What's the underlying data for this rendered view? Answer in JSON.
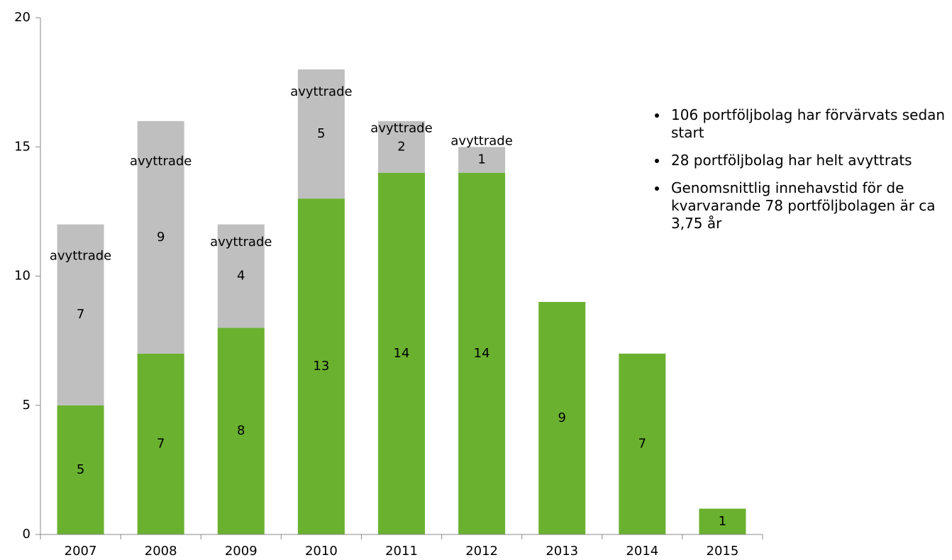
{
  "chart_data": {
    "type": "stacked_bar",
    "categories": [
      "2007",
      "2008",
      "2009",
      "2010",
      "2011",
      "2012",
      "2013",
      "2014",
      "2015"
    ],
    "series": [
      {
        "color": "#6ab130",
        "values": [
          5,
          7,
          8,
          13,
          14,
          14,
          9,
          7,
          1
        ]
      },
      {
        "name": "avyttrade",
        "color": "#bfbfbf",
        "values": [
          7,
          9,
          4,
          5,
          2,
          1,
          null,
          null,
          null
        ]
      }
    ],
    "ylim": [
      0,
      20
    ],
    "yticks": [
      0,
      5,
      10,
      15,
      20
    ],
    "grid": false,
    "annotations": [
      "106 portföljbolag har förvärvats sedan start",
      "28 portföljbolag har helt avyttrats",
      "Genomsnittlig innehavstid för de kvarvarande 78 portföljbolagen är ca 3,75 år"
    ]
  }
}
